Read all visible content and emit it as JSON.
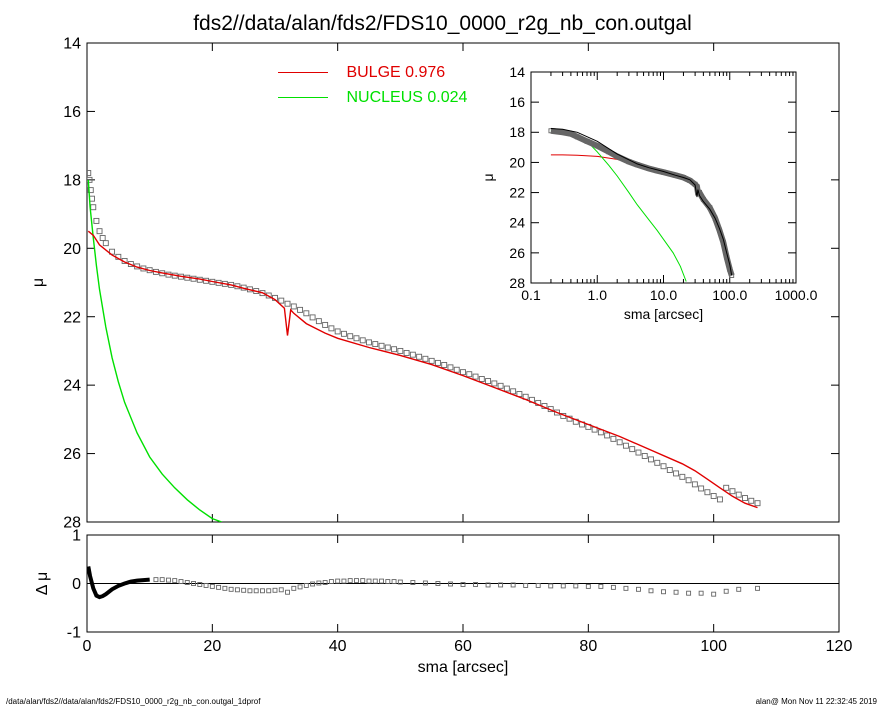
{
  "title": "fds2//data/alan/fds2/FDS10_0000_r2g_nb_con.outgal",
  "footer_left": "/data/alan/fds2//data/alan/fds2/FDS10_0000_r2g_nb_con.outgal_1dprof",
  "footer_right": "alan@  Mon Nov 11 22:32:45 2019",
  "colors": {
    "bulge": "#e00000",
    "nucleus": "#00e000",
    "data": "#666666",
    "total": "#000000"
  },
  "chart_data": [
    {
      "id": "main",
      "type": "line",
      "xlabel": "",
      "ylabel": "μ",
      "xlim": [
        0,
        120
      ],
      "ylim": [
        28,
        14
      ],
      "xticks": [
        0,
        20,
        40,
        60,
        80,
        100,
        120
      ],
      "yticks": [
        14,
        16,
        18,
        20,
        22,
        24,
        26,
        28
      ],
      "legend": {
        "placement": "top-center",
        "entries": [
          {
            "label": "BULGE  0.976",
            "color": "#e00000"
          },
          {
            "label": "NUCLEUS  0.024",
            "color": "#00e000"
          }
        ]
      },
      "series": [
        {
          "name": "BULGE",
          "color": "#e00000",
          "x": [
            0.2,
            1,
            2,
            4,
            6,
            8,
            10,
            12,
            15,
            18,
            20,
            23,
            25,
            28,
            30,
            31.5,
            32,
            32.5,
            33,
            35,
            38,
            40,
            45,
            50,
            55,
            60,
            65,
            70,
            75,
            80,
            85,
            90,
            95,
            97,
            99,
            101,
            103,
            105,
            107
          ],
          "y": [
            19.5,
            19.62,
            19.9,
            20.2,
            20.4,
            20.55,
            20.65,
            20.72,
            20.82,
            20.9,
            20.97,
            21.07,
            21.17,
            21.3,
            21.5,
            21.75,
            22.55,
            21.8,
            21.9,
            22.2,
            22.48,
            22.63,
            22.9,
            23.13,
            23.4,
            23.72,
            24.07,
            24.42,
            24.8,
            25.15,
            25.5,
            25.9,
            26.3,
            26.5,
            26.75,
            27.0,
            27.25,
            27.45,
            27.58
          ]
        },
        {
          "name": "NUCLEUS",
          "color": "#00e000",
          "x": [
            0.2,
            0.5,
            1,
            1.5,
            2,
            3,
            4,
            5,
            6,
            8,
            10,
            12,
            14,
            16,
            18,
            20,
            21.5
          ],
          "y": [
            18.0,
            18.8,
            19.7,
            20.5,
            21.2,
            22.3,
            23.2,
            23.9,
            24.5,
            25.4,
            26.1,
            26.6,
            27.0,
            27.35,
            27.65,
            27.9,
            28.0
          ]
        },
        {
          "name": "data",
          "color": "#666666",
          "x": [
            0.2,
            0.4,
            0.6,
            0.8,
            1,
            1.5,
            2,
            2.5,
            3,
            4,
            5,
            6,
            7,
            8,
            9,
            10,
            11,
            12,
            13,
            14,
            15,
            16,
            17,
            18,
            19,
            20,
            21,
            22,
            23,
            24,
            25,
            26,
            27,
            28,
            29,
            30,
            31,
            32,
            33,
            34,
            35,
            36,
            37,
            38,
            39,
            40,
            41,
            42,
            43,
            44,
            45,
            46,
            47,
            48,
            49,
            50,
            51,
            52,
            53,
            54,
            55,
            56,
            57,
            58,
            59,
            60,
            61,
            62,
            63,
            64,
            65,
            66,
            67,
            68,
            69,
            70,
            71,
            72,
            73,
            74,
            75,
            76,
            77,
            78,
            79,
            80,
            81,
            82,
            83,
            84,
            85,
            86,
            87,
            88,
            89,
            90,
            91,
            92,
            93,
            94,
            95,
            96,
            97,
            98,
            99,
            100,
            101,
            102,
            103,
            104,
            105,
            106,
            107
          ],
          "y": [
            17.8,
            18.0,
            18.3,
            18.55,
            18.8,
            19.2,
            19.5,
            19.7,
            19.85,
            20.1,
            20.25,
            20.37,
            20.46,
            20.53,
            20.59,
            20.64,
            20.69,
            20.73,
            20.77,
            20.8,
            20.83,
            20.86,
            20.89,
            20.92,
            20.95,
            20.98,
            21.01,
            21.04,
            21.07,
            21.11,
            21.15,
            21.2,
            21.25,
            21.31,
            21.38,
            21.45,
            21.53,
            21.62,
            21.7,
            21.8,
            21.9,
            22.02,
            22.13,
            22.24,
            22.34,
            22.43,
            22.5,
            22.57,
            22.63,
            22.69,
            22.75,
            22.8,
            22.85,
            22.9,
            22.95,
            23.0,
            23.06,
            23.11,
            23.17,
            23.23,
            23.29,
            23.35,
            23.41,
            23.48,
            23.55,
            23.62,
            23.68,
            23.75,
            23.82,
            23.88,
            23.95,
            24.02,
            24.1,
            24.18,
            24.26,
            24.34,
            24.43,
            24.52,
            24.61,
            24.7,
            24.8,
            24.9,
            24.98,
            25.07,
            25.15,
            25.22,
            25.3,
            25.38,
            25.47,
            25.57,
            25.67,
            25.77,
            25.87,
            25.97,
            26.07,
            26.17,
            26.27,
            26.37,
            26.48,
            26.58,
            26.68,
            26.78,
            26.9,
            27.02,
            27.13,
            27.24,
            27.34,
            27.0,
            27.1,
            27.2,
            27.3,
            27.38,
            27.45
          ]
        }
      ]
    },
    {
      "id": "residual",
      "type": "scatter",
      "xlabel": "sma [arcsec]",
      "ylabel": "Δ μ",
      "xlim": [
        0,
        120
      ],
      "ylim": [
        -1,
        1
      ],
      "xticks": [
        0,
        20,
        40,
        60,
        80,
        100,
        120
      ],
      "yticks": [
        -1,
        0,
        1
      ],
      "series": [
        {
          "name": "residual",
          "color": "#000000",
          "x": [
            0.2,
            0.5,
            1,
            1.5,
            2,
            2.5,
            3,
            4,
            5,
            6,
            7,
            8,
            9,
            10,
            11,
            12,
            13,
            14,
            15,
            16,
            17,
            18,
            19,
            20,
            21,
            22,
            23,
            24,
            25,
            26,
            27,
            28,
            29,
            30,
            31,
            32,
            33,
            34,
            35,
            36,
            37,
            38,
            39,
            40,
            41,
            42,
            43,
            44,
            45,
            46,
            47,
            48,
            49,
            50,
            52,
            54,
            56,
            58,
            60,
            62,
            64,
            66,
            68,
            70,
            72,
            74,
            76,
            78,
            80,
            82,
            84,
            86,
            88,
            90,
            92,
            94,
            96,
            98,
            100,
            102,
            104,
            107
          ],
          "y": [
            0.35,
            0.15,
            -0.1,
            -0.25,
            -0.28,
            -0.26,
            -0.22,
            -0.12,
            -0.05,
            0.0,
            0.04,
            0.06,
            0.07,
            0.08,
            0.08,
            0.08,
            0.07,
            0.06,
            0.04,
            0.02,
            0.0,
            -0.02,
            -0.04,
            -0.06,
            -0.08,
            -0.1,
            -0.12,
            -0.13,
            -0.14,
            -0.15,
            -0.15,
            -0.15,
            -0.15,
            -0.14,
            -0.13,
            -0.18,
            -0.1,
            -0.07,
            -0.04,
            -0.01,
            0.01,
            0.02,
            0.04,
            0.05,
            0.05,
            0.06,
            0.06,
            0.06,
            0.05,
            0.05,
            0.05,
            0.04,
            0.04,
            0.03,
            0.02,
            0.01,
            0.0,
            -0.01,
            -0.02,
            -0.02,
            -0.03,
            -0.03,
            -0.03,
            -0.04,
            -0.04,
            -0.05,
            -0.05,
            -0.05,
            -0.06,
            -0.06,
            -0.08,
            -0.1,
            -0.12,
            -0.15,
            -0.17,
            -0.18,
            -0.2,
            -0.2,
            -0.22,
            -0.16,
            -0.12,
            -0.1
          ]
        }
      ]
    },
    {
      "id": "inset",
      "type": "line",
      "xlabel": "sma [arcsec]",
      "ylabel": "μ",
      "xscale": "log",
      "xlim": [
        0.1,
        1000
      ],
      "ylim": [
        28,
        14
      ],
      "xticks": [
        0.1,
        1,
        10,
        100,
        1000
      ],
      "xticklabels": [
        "0.1",
        "1.0",
        "10.0",
        "100.0",
        "1000.0"
      ],
      "yticks": [
        14,
        16,
        18,
        20,
        22,
        24,
        26,
        28
      ],
      "series": [
        {
          "name": "BULGE",
          "color": "#e00000",
          "x": [
            0.2,
            0.3,
            0.5,
            1,
            2,
            4,
            6,
            10,
            15,
            20,
            25
          ],
          "y": [
            19.5,
            19.5,
            19.52,
            19.6,
            19.8,
            20.15,
            20.4,
            20.65,
            20.85,
            21.0,
            21.1
          ]
        },
        {
          "name": "NUCLEUS",
          "color": "#00e000",
          "x": [
            0.2,
            0.3,
            0.5,
            0.7,
            1,
            1.5,
            2,
            3,
            4,
            6,
            8,
            10,
            14,
            18,
            22
          ],
          "y": [
            17.9,
            17.95,
            18.2,
            18.6,
            19.3,
            20.2,
            20.9,
            22.0,
            22.8,
            23.8,
            24.5,
            25.1,
            26.0,
            26.9,
            27.9
          ]
        },
        {
          "name": "data",
          "color": "#666666",
          "x": [
            0.2,
            0.3,
            0.4,
            0.5,
            0.7,
            1,
            1.5,
            2,
            3,
            4,
            6,
            8,
            10,
            15,
            20,
            25,
            30,
            32,
            33,
            35,
            40,
            50,
            60,
            70,
            80,
            90,
            100,
            107
          ],
          "y": [
            17.9,
            18.0,
            18.1,
            18.3,
            18.6,
            18.9,
            19.3,
            19.6,
            19.95,
            20.15,
            20.4,
            20.55,
            20.65,
            20.85,
            21.0,
            21.2,
            21.45,
            21.6,
            22.0,
            22.0,
            22.45,
            23.0,
            23.7,
            24.5,
            25.3,
            26.3,
            27.1,
            27.5
          ]
        },
        {
          "name": "total",
          "color": "#000000",
          "x": [
            0.2,
            0.3,
            0.5,
            1,
            2,
            4,
            6,
            10,
            15,
            20,
            25,
            30,
            32,
            33,
            35,
            40,
            50,
            60,
            70,
            80,
            90,
            100,
            107
          ],
          "y": [
            17.75,
            17.8,
            18.0,
            18.6,
            19.45,
            20.1,
            20.35,
            20.6,
            20.85,
            21.0,
            21.15,
            21.5,
            22.3,
            21.8,
            22.2,
            22.6,
            23.1,
            23.7,
            24.4,
            25.1,
            26.0,
            26.8,
            27.5
          ]
        }
      ]
    }
  ]
}
